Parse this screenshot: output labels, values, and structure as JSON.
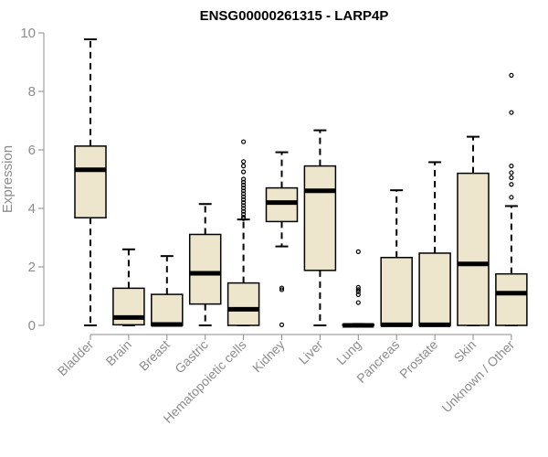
{
  "chart_data": {
    "type": "boxplot",
    "title": "ENSG00000261315 - LARP4P",
    "xlabel": "",
    "ylabel": "Expression",
    "ylim": [
      0,
      10
    ],
    "yticks": [
      0,
      2,
      4,
      6,
      8,
      10
    ],
    "box_color": "#ede6cc",
    "line_color": "#000000",
    "axis_color": "#8c8c8c",
    "categories": [
      "Bladder",
      "Brain",
      "Breast",
      "Gastric",
      "Hematopoietic cells",
      "Kidney",
      "Liver",
      "Lung",
      "Pancreas",
      "Prostate",
      "Skin",
      "Unknown / Other"
    ],
    "series": [
      {
        "name": "Bladder",
        "whisker_low": 0.0,
        "q1": 3.68,
        "median": 5.32,
        "q3": 6.13,
        "whisker_high": 9.78,
        "outliers": []
      },
      {
        "name": "Brain",
        "whisker_low": 0.0,
        "q1": 0.02,
        "median": 0.27,
        "q3": 1.27,
        "whisker_high": 2.6,
        "outliers": []
      },
      {
        "name": "Breast",
        "whisker_low": 0.0,
        "q1": 0.0,
        "median": 0.03,
        "q3": 1.06,
        "whisker_high": 2.37,
        "outliers": []
      },
      {
        "name": "Gastric",
        "whisker_low": 0.0,
        "q1": 0.73,
        "median": 1.78,
        "q3": 3.11,
        "whisker_high": 4.15,
        "outliers": []
      },
      {
        "name": "Hematopoietic cells",
        "whisker_low": 0.0,
        "q1": 0.0,
        "median": 0.55,
        "q3": 1.45,
        "whisker_high": 3.62,
        "outliers": [
          3.65,
          3.7,
          3.8,
          3.9,
          4.0,
          4.1,
          4.2,
          4.3,
          4.4,
          4.5,
          4.6,
          4.7,
          4.8,
          4.9,
          5.0,
          5.25,
          5.45,
          5.6,
          6.28
        ]
      },
      {
        "name": "Kidney",
        "whisker_low": 2.7,
        "q1": 3.55,
        "median": 4.2,
        "q3": 4.7,
        "whisker_high": 5.92,
        "outliers": [
          0.02,
          1.22,
          1.28
        ]
      },
      {
        "name": "Liver",
        "whisker_low": 0.0,
        "q1": 1.88,
        "median": 4.6,
        "q3": 5.45,
        "whisker_high": 6.67,
        "outliers": []
      },
      {
        "name": "Lung",
        "whisker_low": 0.0,
        "q1": 0.0,
        "median": 0.0,
        "q3": 0.03,
        "whisker_high": 0.05,
        "outliers": [
          0.78,
          1.05,
          1.15,
          1.22,
          1.3,
          2.52
        ]
      },
      {
        "name": "Pancreas",
        "whisker_low": 0.0,
        "q1": 0.0,
        "median": 0.02,
        "q3": 2.32,
        "whisker_high": 4.62,
        "outliers": []
      },
      {
        "name": "Prostate",
        "whisker_low": 0.0,
        "q1": 0.0,
        "median": 0.02,
        "q3": 2.47,
        "whisker_high": 5.58,
        "outliers": []
      },
      {
        "name": "Skin",
        "whisker_low": 0.0,
        "q1": 0.0,
        "median": 2.1,
        "q3": 5.2,
        "whisker_high": 6.45,
        "outliers": []
      },
      {
        "name": "Unknown / Other",
        "whisker_low": 0.0,
        "q1": 0.0,
        "median": 1.1,
        "q3": 1.76,
        "whisker_high": 4.08,
        "outliers": [
          4.38,
          4.82,
          5.05,
          5.22,
          5.45,
          7.28,
          8.55
        ]
      }
    ]
  }
}
